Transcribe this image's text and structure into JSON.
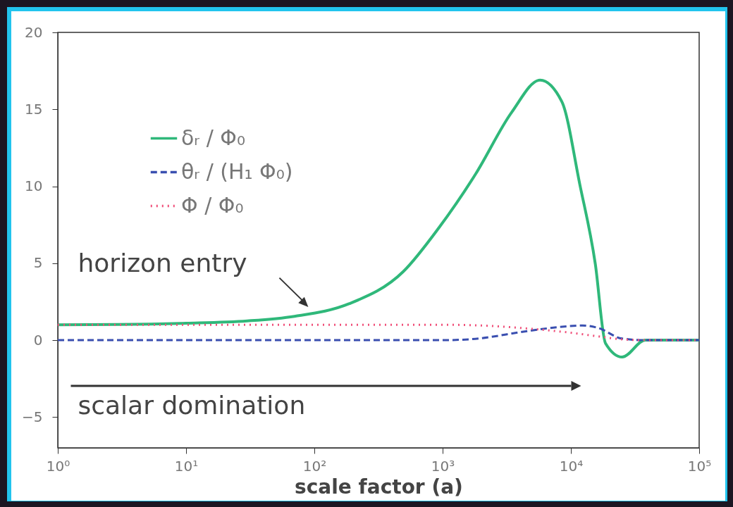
{
  "chart_data": {
    "type": "line",
    "xlabel": "scale factor (a)",
    "log": "x",
    "xlim": [
      1,
      100000
    ],
    "ylim": [
      -7,
      20
    ],
    "xticks": [
      {
        "value": 1,
        "label": "10⁰"
      },
      {
        "value": 10,
        "label": "10¹"
      },
      {
        "value": 100,
        "label": "10²"
      },
      {
        "value": 1000,
        "label": "10³"
      },
      {
        "value": 10000,
        "label": "10⁴"
      },
      {
        "value": 100000,
        "label": "10⁵"
      }
    ],
    "yticks": [
      -5,
      0,
      5,
      10,
      15,
      20
    ],
    "grid": false,
    "legend": "top left",
    "series": [
      {
        "name": "δᵣ / Φ₀",
        "color": "#2fb87a",
        "line_style": "solid",
        "x": [
          1,
          3,
          10,
          30,
          70,
          186,
          493,
          935,
          1810,
          3450,
          5750,
          8500,
          11750,
          15500,
          18600,
          25100,
          38000,
          60000,
          100000
        ],
        "values": [
          1.0,
          1.02,
          1.1,
          1.25,
          1.55,
          2.36,
          4.45,
          7.3,
          10.8,
          14.8,
          16.9,
          15.5,
          10.1,
          4.95,
          -0.2,
          -1.1,
          0,
          0,
          0
        ]
      },
      {
        "name": "θᵣ / (H₁ Φ₀)",
        "color": "#3a4fb0",
        "line_style": "dashed",
        "x": [
          1,
          10,
          100,
          300,
          1000,
          1600,
          4700,
          8000,
          12300,
          16200,
          25100,
          38000,
          100000
        ],
        "values": [
          0,
          0,
          0,
          0,
          0,
          0.05,
          0.6,
          0.85,
          0.95,
          0.8,
          0.1,
          0,
          0
        ]
      },
      {
        "name": "Φ / Φ₀",
        "color": "#f0507a",
        "line_style": "dotted",
        "x": [
          1,
          10,
          100,
          1000,
          2000,
          4700,
          9500,
          16200,
          25100,
          38000,
          100000
        ],
        "values": [
          1,
          1,
          1,
          1,
          0.95,
          0.75,
          0.5,
          0.25,
          0.05,
          0,
          0
        ]
      }
    ],
    "annotations": [
      "horizon entry",
      "scalar domination"
    ]
  }
}
